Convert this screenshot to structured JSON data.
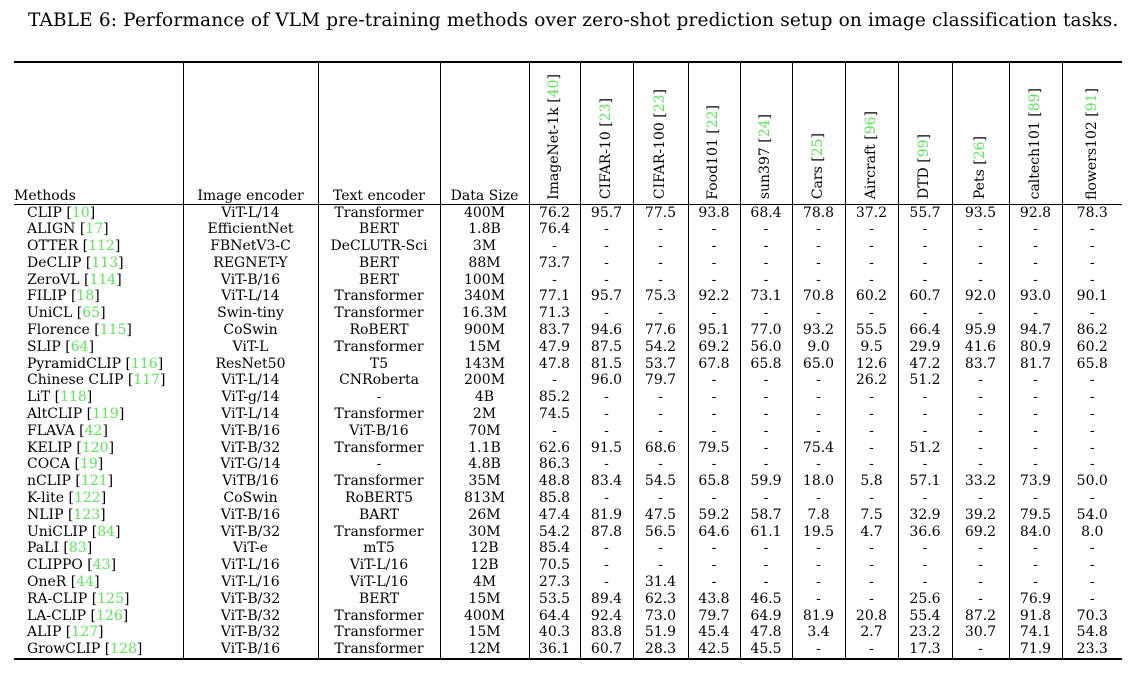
{
  "title": "TABLE 6: Performance of VLM pre-training methods over zero-shot prediction setup on image classification tasks.",
  "accent_color": "#5ee65e",
  "table": {
    "text_columns": [
      "Methods",
      "Image encoder",
      "Text encoder",
      "Data Size"
    ],
    "dataset_columns": [
      {
        "label": "ImageNet-1k",
        "cite": "40"
      },
      {
        "label": "CIFAR-10",
        "cite": "23"
      },
      {
        "label": "CIFAR-100",
        "cite": "23"
      },
      {
        "label": "Food101",
        "cite": "22"
      },
      {
        "label": "sun397",
        "cite": "24"
      },
      {
        "label": "Cars",
        "cite": "25"
      },
      {
        "label": "Aircraft",
        "cite": "96"
      },
      {
        "label": "DTD",
        "cite": "99"
      },
      {
        "label": "Pets",
        "cite": "26"
      },
      {
        "label": "caltech101",
        "cite": "89"
      },
      {
        "label": "flowers102",
        "cite": "91"
      }
    ],
    "rows": [
      {
        "method": "CLIP",
        "cite": "10",
        "image_encoder": "ViT-L/14",
        "text_encoder": "Transformer",
        "data_size": "400M",
        "values": [
          "76.2",
          "95.7",
          "77.5",
          "93.8",
          "68.4",
          "78.8",
          "37.2",
          "55.7",
          "93.5",
          "92.8",
          "78.3"
        ]
      },
      {
        "method": "ALIGN",
        "cite": "17",
        "image_encoder": "EfficientNet",
        "text_encoder": "BERT",
        "data_size": "1.8B",
        "values": [
          "76.4",
          "-",
          "-",
          "-",
          "-",
          "-",
          "-",
          "-",
          "-",
          "-",
          "-"
        ]
      },
      {
        "method": "OTTER",
        "cite": "112",
        "image_encoder": "FBNetV3-C",
        "text_encoder": "DeCLUTR-Sci",
        "data_size": "3M",
        "values": [
          "-",
          "-",
          "-",
          "-",
          "-",
          "-",
          "-",
          "-",
          "-",
          "-",
          "-"
        ]
      },
      {
        "method": "DeCLIP",
        "cite": "113",
        "image_encoder": "REGNET-Y",
        "text_encoder": "BERT",
        "data_size": "88M",
        "values": [
          "73.7",
          "-",
          "-",
          "-",
          "-",
          "-",
          "-",
          "-",
          "-",
          "-",
          "-"
        ]
      },
      {
        "method": "ZeroVL",
        "cite": "114",
        "image_encoder": "ViT-B/16",
        "text_encoder": "BERT",
        "data_size": "100M",
        "values": [
          "-",
          "-",
          "-",
          "-",
          "-",
          "-",
          "-",
          "-",
          "-",
          "-",
          "-"
        ]
      },
      {
        "method": "FILIP",
        "cite": "18",
        "image_encoder": "ViT-L/14",
        "text_encoder": "Transformer",
        "data_size": "340M",
        "values": [
          "77.1",
          "95.7",
          "75.3",
          "92.2",
          "73.1",
          "70.8",
          "60.2",
          "60.7",
          "92.0",
          "93.0",
          "90.1"
        ]
      },
      {
        "method": "UniCL",
        "cite": "65",
        "image_encoder": "Swin-tiny",
        "text_encoder": "Transformer",
        "data_size": "16.3M",
        "values": [
          "71.3",
          "-",
          "-",
          "-",
          "-",
          "-",
          "-",
          "-",
          "-",
          "-",
          "-"
        ]
      },
      {
        "method": "Florence",
        "cite": "115",
        "image_encoder": "CoSwin",
        "text_encoder": "RoBERT",
        "data_size": "900M",
        "values": [
          "83.7",
          "94.6",
          "77.6",
          "95.1",
          "77.0",
          "93.2",
          "55.5",
          "66.4",
          "95.9",
          "94.7",
          "86.2"
        ]
      },
      {
        "method": "SLIP",
        "cite": "64",
        "image_encoder": "ViT-L",
        "text_encoder": "Transformer",
        "data_size": "15M",
        "values": [
          "47.9",
          "87.5",
          "54.2",
          "69.2",
          "56.0",
          "9.0",
          "9.5",
          "29.9",
          "41.6",
          "80.9",
          "60.2"
        ]
      },
      {
        "method": "PyramidCLIP",
        "cite": "116",
        "image_encoder": "ResNet50",
        "text_encoder": "T5",
        "data_size": "143M",
        "values": [
          "47.8",
          "81.5",
          "53.7",
          "67.8",
          "65.8",
          "65.0",
          "12.6",
          "47.2",
          "83.7",
          "81.7",
          "65.8"
        ]
      },
      {
        "method": "Chinese CLIP",
        "cite": "117",
        "image_encoder": "ViT-L/14",
        "text_encoder": "CNRoberta",
        "data_size": "200M",
        "values": [
          "-",
          "96.0",
          "79.7",
          "-",
          "-",
          "-",
          "26.2",
          "51.2",
          "-",
          "-",
          "-"
        ]
      },
      {
        "method": "LiT",
        "cite": "118",
        "image_encoder": "ViT-g/14",
        "text_encoder": "-",
        "data_size": "4B",
        "values": [
          "85.2",
          "-",
          "-",
          "-",
          "-",
          "-",
          "-",
          "-",
          "-",
          "-",
          "-"
        ]
      },
      {
        "method": "AltCLIP",
        "cite": "119",
        "image_encoder": "ViT-L/14",
        "text_encoder": "Transformer",
        "data_size": "2M",
        "values": [
          "74.5",
          "-",
          "-",
          "-",
          "-",
          "-",
          "-",
          "-",
          "-",
          "-",
          "-"
        ]
      },
      {
        "method": "FLAVA",
        "cite": "42",
        "image_encoder": "ViT-B/16",
        "text_encoder": "ViT-B/16",
        "data_size": "70M",
        "values": [
          "-",
          "-",
          "-",
          "-",
          "-",
          "-",
          "-",
          "-",
          "-",
          "-",
          "-"
        ]
      },
      {
        "method": "KELIP",
        "cite": "120",
        "image_encoder": "ViT-B/32",
        "text_encoder": "Transformer",
        "data_size": "1.1B",
        "values": [
          "62.6",
          "91.5",
          "68.6",
          "79.5",
          "-",
          "75.4",
          "-",
          "51.2",
          "-",
          "-",
          "-"
        ]
      },
      {
        "method": "COCA",
        "cite": "19",
        "image_encoder": "ViT-G/14",
        "text_encoder": "-",
        "data_size": "4.8B",
        "values": [
          "86.3",
          "-",
          "-",
          "-",
          "-",
          "-",
          "-",
          "-",
          "-",
          "-",
          "-"
        ]
      },
      {
        "method": "nCLIP",
        "cite": "121",
        "image_encoder": "ViTB/16",
        "text_encoder": "Transformer",
        "data_size": "35M",
        "values": [
          "48.8",
          "83.4",
          "54.5",
          "65.8",
          "59.9",
          "18.0",
          "5.8",
          "57.1",
          "33.2",
          "73.9",
          "50.0"
        ]
      },
      {
        "method": "K-lite",
        "cite": "122",
        "image_encoder": "CoSwin",
        "text_encoder": "RoBERT5",
        "data_size": "813M",
        "values": [
          "85.8",
          "-",
          "-",
          "-",
          "-",
          "-",
          "-",
          "-",
          "-",
          "-",
          "-"
        ]
      },
      {
        "method": "NLIP",
        "cite": "123",
        "image_encoder": "ViT-B/16",
        "text_encoder": "BART",
        "data_size": "26M",
        "values": [
          "47.4",
          "81.9",
          "47.5",
          "59.2",
          "58.7",
          "7.8",
          "7.5",
          "32.9",
          "39.2",
          "79.5",
          "54.0"
        ]
      },
      {
        "method": "UniCLIP",
        "cite": "84",
        "image_encoder": "ViT-B/32",
        "text_encoder": "Transformer",
        "data_size": "30M",
        "values": [
          "54.2",
          "87.8",
          "56.5",
          "64.6",
          "61.1",
          "19.5",
          "4.7",
          "36.6",
          "69.2",
          "84.0",
          "8.0"
        ]
      },
      {
        "method": "PaLI",
        "cite": "83",
        "image_encoder": "ViT-e",
        "text_encoder": "mT5",
        "data_size": "12B",
        "values": [
          "85.4",
          "-",
          "-",
          "-",
          "-",
          "-",
          "-",
          "-",
          "-",
          "-",
          "-"
        ]
      },
      {
        "method": "CLIPPO",
        "cite": "43",
        "image_encoder": "ViT-L/16",
        "text_encoder": "ViT-L/16",
        "data_size": "12B",
        "values": [
          "70.5",
          "-",
          "-",
          "-",
          "-",
          "-",
          "-",
          "-",
          "-",
          "-",
          "-"
        ]
      },
      {
        "method": "OneR",
        "cite": "44",
        "image_encoder": "ViT-L/16",
        "text_encoder": "ViT-L/16",
        "data_size": "4M",
        "values": [
          "27.3",
          "-",
          "31.4",
          "-",
          "-",
          "-",
          "-",
          "-",
          "-",
          "-",
          "-"
        ]
      },
      {
        "method": "RA-CLIP",
        "cite": "125",
        "image_encoder": "ViT-B/32",
        "text_encoder": "BERT",
        "data_size": "15M",
        "values": [
          "53.5",
          "89.4",
          "62.3",
          "43.8",
          "46.5",
          "-",
          "-",
          "25.6",
          "-",
          "76.9",
          "-"
        ]
      },
      {
        "method": "LA-CLIP",
        "cite": "126",
        "image_encoder": "ViT-B/32",
        "text_encoder": "Transformer",
        "data_size": "400M",
        "values": [
          "64.4",
          "92.4",
          "73.0",
          "79.7",
          "64.9",
          "81.9",
          "20.8",
          "55.4",
          "87.2",
          "91.8",
          "70.3"
        ]
      },
      {
        "method": "ALIP",
        "cite": "127",
        "image_encoder": "ViT-B/32",
        "text_encoder": "Transformer",
        "data_size": "15M",
        "values": [
          "40.3",
          "83.8",
          "51.9",
          "45.4",
          "47.8",
          "3.4",
          "2.7",
          "23.2",
          "30.7",
          "74.1",
          "54.8"
        ]
      },
      {
        "method": "GrowCLIP",
        "cite": "128",
        "image_encoder": "ViT-B/16",
        "text_encoder": "Transformer",
        "data_size": "12M",
        "values": [
          "36.1",
          "60.7",
          "28.3",
          "42.5",
          "45.5",
          "-",
          "-",
          "17.3",
          "-",
          "71.9",
          "23.3"
        ]
      }
    ]
  }
}
